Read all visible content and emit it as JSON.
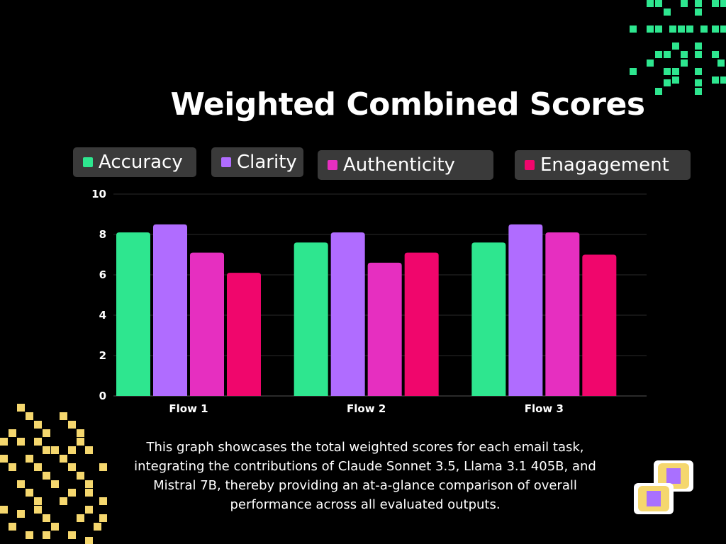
{
  "chart_data": {
    "type": "bar",
    "title": "Weighted Combined Scores",
    "categories": [
      "Flow 1",
      "Flow 2",
      "Flow 3"
    ],
    "series": [
      {
        "name": "Accuracy",
        "color": "#2ee68f",
        "values": [
          8.1,
          7.6,
          7.6
        ]
      },
      {
        "name": "Clarity",
        "color": "#b06cff",
        "values": [
          8.5,
          8.1,
          8.5
        ]
      },
      {
        "name": "Authenticity",
        "color": "#e62fc0",
        "values": [
          7.1,
          6.6,
          8.1
        ]
      },
      {
        "name": "Enagagement",
        "color": "#f0066c",
        "values": [
          6.1,
          7.1,
          7.0
        ]
      }
    ],
    "yticks": [
      "0",
      "2",
      "4",
      "6",
      "8",
      "10"
    ],
    "ylim": [
      0,
      10
    ],
    "grid": true,
    "legend_position": "top"
  },
  "caption": "This graph showcases the total weighted scores for each email task, integrating the contributions of Claude Sonnet 3.5, Llama 3.1 405B, and Mistral 7B, thereby providing an at-a-glance comparison of overall performance across all evaluated outputs.",
  "decor": {
    "top_right": "green-pixel-pattern",
    "bottom_left": "yellow-pixel-pattern",
    "bottom_right": "pixel-coins-icon"
  }
}
